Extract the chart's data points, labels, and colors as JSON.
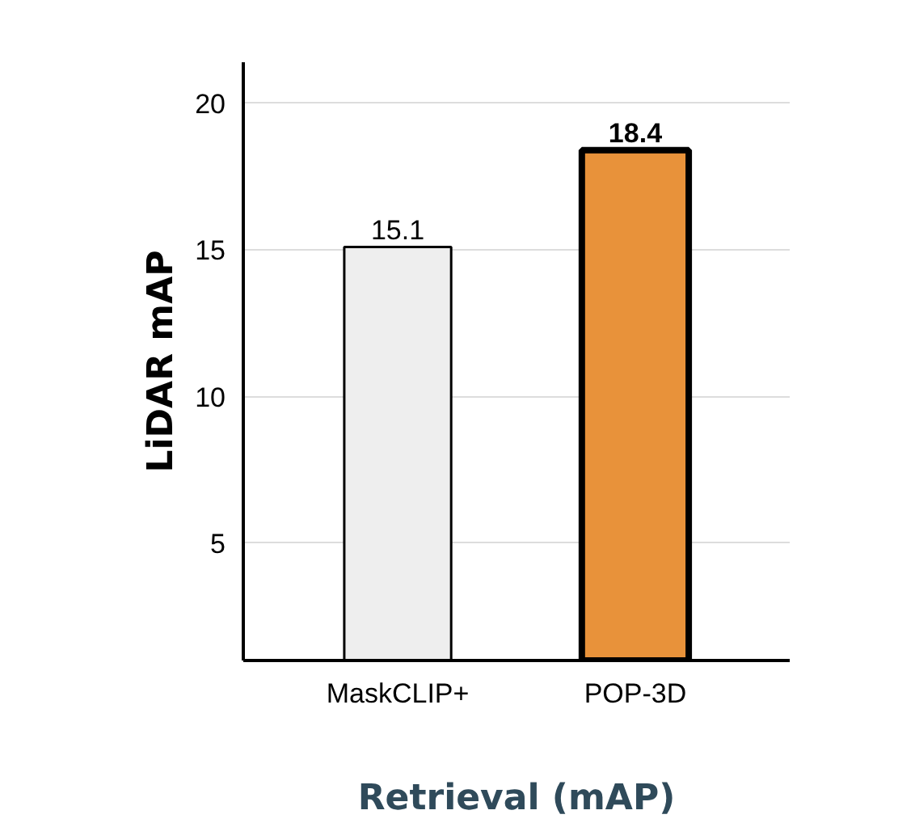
{
  "chart_data": {
    "type": "bar",
    "xlabel": "Retrieval (mAP)",
    "ylabel": "LiDAR mAP",
    "categories": [
      "MaskCLIP+",
      "POP-3D"
    ],
    "values": [
      15.1,
      18.4
    ],
    "colors": [
      "#eeeeee",
      "#e8923a"
    ],
    "ylim": [
      1,
      21.4
    ],
    "yticks": [
      5,
      10,
      15,
      20
    ],
    "grid": "y",
    "data_labels": true
  }
}
